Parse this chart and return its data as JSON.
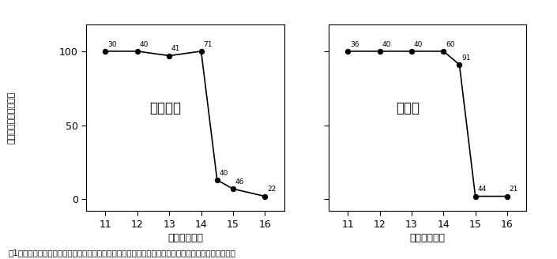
{
  "left_label": "ナミヒメ",
  "right_label": "コヒメ",
  "ylabel_chars": [
    "卵",
    "巣",
    "未",
    "発",
    "育",
    "雌",
    "率",
    "（",
    "％",
    "）"
  ],
  "xlabel": "日長（時間）",
  "caption": "図1．発育時の日長と卵巣未発育雌（＝休眠雌）の割合との関係．各点上の数字は供試個体数を示す．",
  "left_x": [
    11,
    12,
    13,
    14,
    14.5,
    15,
    16
  ],
  "left_y": [
    100,
    100,
    97,
    100,
    13,
    7,
    2
  ],
  "left_n": [
    "30",
    "40",
    "41",
    "71",
    "40",
    "46",
    "22"
  ],
  "right_x": [
    11,
    12,
    13,
    14,
    14.5,
    15,
    16
  ],
  "right_y": [
    100,
    100,
    100,
    100,
    91,
    2,
    2
  ],
  "right_n": [
    "36",
    "40",
    "40",
    "60",
    "91",
    "44",
    "21"
  ],
  "xlim": [
    10.4,
    16.6
  ],
  "ylim": [
    -8,
    118
  ],
  "xticks": [
    11,
    12,
    13,
    14,
    15,
    16
  ],
  "yticks": [
    0,
    50,
    100
  ],
  "line_color": "#000000",
  "marker_color": "#000000",
  "text_color": "#000000"
}
